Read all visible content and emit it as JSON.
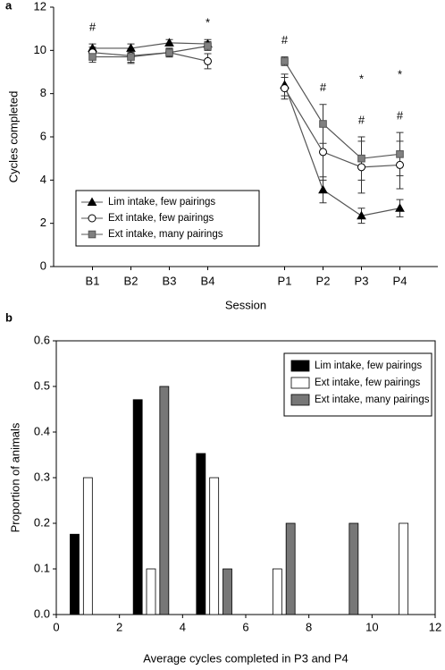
{
  "chart_data": [
    {
      "type": "line",
      "panel": "a",
      "y_label": "Cycles completed",
      "x_label": "Session",
      "categories": [
        "B1",
        "B2",
        "B3",
        "B4",
        null,
        "P1",
        "P2",
        "P3",
        "P4"
      ],
      "ylim": [
        0,
        12
      ],
      "yticks": [
        0,
        2,
        4,
        6,
        8,
        10,
        12
      ],
      "legend": "lower-left",
      "series": [
        {
          "name": "Lim intake, few pairings",
          "color": "#000000",
          "marker": "triangle",
          "values": [
            10.1,
            10.1,
            10.35,
            10.3,
            null,
            8.4,
            3.55,
            2.35,
            2.7
          ],
          "errors": [
            0.2,
            0.2,
            0.15,
            0.2,
            null,
            0.5,
            0.6,
            0.35,
            0.4
          ]
        },
        {
          "name": "Ext intake, few pairings",
          "color": "#ffffff",
          "marker": "circle",
          "values": [
            9.9,
            9.75,
            9.9,
            9.5,
            null,
            8.25,
            5.3,
            4.6,
            4.7
          ],
          "errors": [
            0.25,
            0.3,
            0.2,
            0.35,
            null,
            0.5,
            1.3,
            1.2,
            1.1
          ]
        },
        {
          "name": "Ext intake, many pairings",
          "color": "#808080",
          "marker": "square",
          "values": [
            9.7,
            9.7,
            9.9,
            10.2,
            null,
            9.5,
            6.6,
            5.0,
            5.2
          ],
          "errors": [
            0.25,
            0.3,
            0.2,
            0.2,
            null,
            0.2,
            0.9,
            1.0,
            1.0
          ]
        }
      ],
      "annotations": [
        {
          "text": "#",
          "category": "B1"
        },
        {
          "text": "*",
          "category": "B4"
        },
        {
          "text": "#",
          "category": "P1"
        },
        {
          "text": "#",
          "category": "P2"
        },
        {
          "text": "#",
          "category": "P3"
        },
        {
          "text": "*",
          "category": "P3"
        },
        {
          "text": "#",
          "category": "P4"
        },
        {
          "text": "*",
          "category": "P4"
        }
      ]
    },
    {
      "type": "bar",
      "panel": "b",
      "y_label": "Proportion of animals",
      "x_label": "Average cycles completed in P3 and P4",
      "x": [
        1,
        3,
        5,
        7,
        9,
        11
      ],
      "xlim": [
        0,
        12
      ],
      "xticks": [
        0,
        2,
        4,
        6,
        8,
        10,
        12
      ],
      "ylim": [
        0,
        0.6
      ],
      "yticks": [
        {
          "value": 0,
          "label": "0.0"
        },
        0.1,
        0.2,
        0.3,
        0.4,
        0.5,
        0.6
      ],
      "legend": "upper-right",
      "series": [
        {
          "name": "Lim intake, few pairings",
          "color": "#000000",
          "values": [
            0.176,
            0.471,
            0.353,
            0,
            0,
            0
          ]
        },
        {
          "name": "Ext intake, few pairings",
          "color": "#ffffff",
          "values": [
            0.3,
            0.1,
            0.3,
            0.1,
            0,
            0.2
          ]
        },
        {
          "name": "Ext intake, many pairings",
          "color": "#777777",
          "values": [
            0,
            0.5,
            0.1,
            0.2,
            0.2,
            0
          ]
        }
      ]
    }
  ]
}
